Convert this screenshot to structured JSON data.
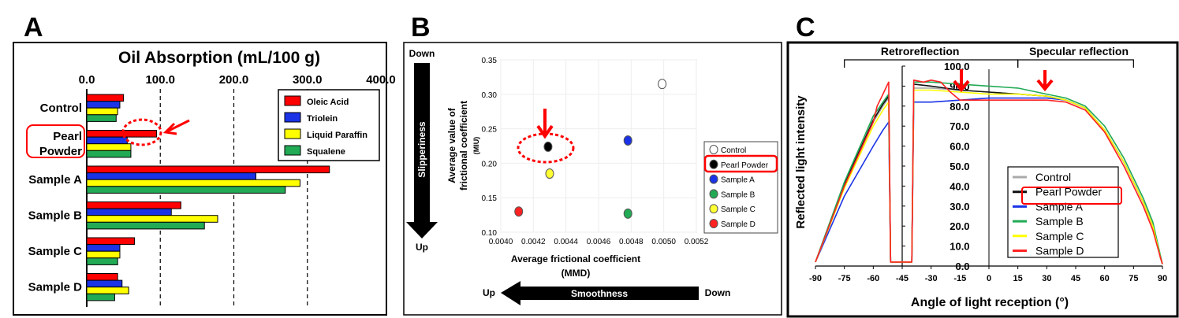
{
  "panel_letters": [
    "A",
    "B",
    "C"
  ],
  "chart_data": [
    {
      "type": "bar",
      "orientation": "horizontal",
      "title": "Oil Absorption (mL/100 g)",
      "categories": [
        "Control",
        "Pearl Powder",
        "Sample A",
        "Sample B",
        "Sample C",
        "Sample D"
      ],
      "category_display": [
        [
          "Control"
        ],
        [
          "Pearl",
          "Powder"
        ],
        [
          "Sample A"
        ],
        [
          "Sample B"
        ],
        [
          "Sample C"
        ],
        [
          "Sample D"
        ]
      ],
      "series": [
        {
          "name": "Oleic Acid",
          "color": "#ff0000",
          "values": [
            50,
            95,
            330,
            128,
            65,
            42
          ]
        },
        {
          "name": "Triolein",
          "color": "#1a33e6",
          "values": [
            45,
            55,
            230,
            115,
            45,
            48
          ]
        },
        {
          "name": "Liquid Paraffin",
          "color": "#ffff00",
          "values": [
            42,
            60,
            290,
            178,
            45,
            57
          ]
        },
        {
          "name": "Squalene",
          "color": "#22aa55",
          "values": [
            40,
            60,
            270,
            160,
            42,
            38
          ]
        }
      ],
      "xlim": [
        0,
        400
      ],
      "x_ticks": [
        "0.0",
        "100.0",
        "200.0",
        "300.0",
        "400.0"
      ],
      "grid": "dashed vertical lines at 100, 200, 300",
      "legend": "top-right",
      "highlight": "Pearl Powder"
    },
    {
      "type": "scatter",
      "xlabel": [
        "Average frictional coefficient",
        "(MMD)"
      ],
      "ylabel": [
        "Average value of",
        "frictional coefficient",
        "(MIU)"
      ],
      "xlim": [
        0.004,
        0.0052
      ],
      "ylim": [
        0.1,
        0.35
      ],
      "x_ticks": [
        "0.0040",
        "0.0042",
        "0.0044",
        "0.0046",
        "0.0048",
        "0.0050",
        "0.0052"
      ],
      "y_ticks": [
        "0.10",
        "0.15",
        "0.20",
        "0.25",
        "0.30",
        "0.35"
      ],
      "points": [
        {
          "name": "Control",
          "x": 0.00499,
          "y": 0.315,
          "color": "#ffffff"
        },
        {
          "name": "Pearl Powder",
          "x": 0.00429,
          "y": 0.224,
          "color": "#000000"
        },
        {
          "name": "Sample A",
          "x": 0.00478,
          "y": 0.233,
          "color": "#1a33e6"
        },
        {
          "name": "Sample B",
          "x": 0.00478,
          "y": 0.127,
          "color": "#22aa55"
        },
        {
          "name": "Sample C",
          "x": 0.0043,
          "y": 0.185,
          "color": "#ffff33"
        },
        {
          "name": "Sample D",
          "x": 0.00411,
          "y": 0.13,
          "color": "#ff2222"
        }
      ],
      "legend": "right",
      "highlight": "Pearl Powder",
      "arrow_vertical": {
        "label": "Slipperiness",
        "top": "Down",
        "bottom": "Up"
      },
      "arrow_horizontal": {
        "label": "Smoothness",
        "left": "Up",
        "right": "Down"
      }
    },
    {
      "type": "line",
      "xlabel": "Angle of light reception (°)",
      "ylabel": "Reflected light intensity",
      "xlim": [
        -90,
        90
      ],
      "ylim": [
        0,
        100
      ],
      "x_ticks": [
        "-90",
        "-75",
        "-60",
        "-45",
        "-30",
        "-15",
        "0",
        "15",
        "30",
        "45",
        "60",
        "75",
        "90"
      ],
      "y_ticks": [
        "0.0",
        "10.0",
        "20.0",
        "30.0",
        "40.0",
        "50.0",
        "60.0",
        "70.0",
        "80.0",
        "90.0",
        "100.0"
      ],
      "regions": [
        {
          "label": "Retroreflection",
          "from": -75,
          "to": 15
        },
        {
          "label": "Specular reflection",
          "from": 15,
          "to": 75
        }
      ],
      "series": [
        {
          "name": "Control",
          "color": "#aaaaaa",
          "points": [
            [
              -90,
              2
            ],
            [
              -75,
              40
            ],
            [
              -60,
              72
            ],
            [
              -55,
              80
            ],
            [
              -52,
              84
            ],
            [
              -51,
              2
            ],
            [
              -40,
              2
            ],
            [
              -39,
              89
            ],
            [
              -30,
              89
            ],
            [
              -15,
              88
            ],
            [
              0,
              87
            ],
            [
              15,
              86
            ],
            [
              30,
              85
            ],
            [
              40,
              83
            ],
            [
              50,
              79
            ],
            [
              60,
              68
            ],
            [
              70,
              52
            ],
            [
              80,
              32
            ],
            [
              85,
              20
            ],
            [
              89,
              4
            ],
            [
              90,
              1
            ]
          ]
        },
        {
          "name": "Pearl Powder",
          "color": "#111111",
          "points": [
            [
              -90,
              2
            ],
            [
              -75,
              41
            ],
            [
              -60,
              73
            ],
            [
              -55,
              81
            ],
            [
              -52,
              85
            ],
            [
              -51,
              2
            ],
            [
              -40,
              2
            ],
            [
              -39,
              91
            ],
            [
              -30,
              90
            ],
            [
              -15,
              88
            ],
            [
              0,
              87
            ],
            [
              15,
              86
            ],
            [
              30,
              85
            ],
            [
              40,
              83
            ],
            [
              50,
              79
            ],
            [
              60,
              68
            ],
            [
              70,
              52
            ],
            [
              80,
              32
            ],
            [
              85,
              20
            ],
            [
              89,
              4
            ],
            [
              90,
              1
            ]
          ]
        },
        {
          "name": "Sample A",
          "color": "#1a33e6",
          "points": [
            [
              -90,
              2
            ],
            [
              -75,
              35
            ],
            [
              -60,
              60
            ],
            [
              -55,
              68
            ],
            [
              -52,
              72
            ],
            [
              -51,
              2
            ],
            [
              -40,
              2
            ],
            [
              -39,
              82
            ],
            [
              -30,
              82
            ],
            [
              -15,
              83
            ],
            [
              0,
              84
            ],
            [
              15,
              84
            ],
            [
              30,
              84
            ],
            [
              40,
              83
            ],
            [
              50,
              79
            ],
            [
              60,
              68
            ],
            [
              70,
              52
            ],
            [
              80,
              32
            ],
            [
              85,
              20
            ],
            [
              89,
              4
            ],
            [
              90,
              1
            ]
          ]
        },
        {
          "name": "Sample B",
          "color": "#22aa55",
          "points": [
            [
              -90,
              2
            ],
            [
              -75,
              42
            ],
            [
              -60,
              75
            ],
            [
              -55,
              82
            ],
            [
              -52,
              86
            ],
            [
              -51,
              2
            ],
            [
              -40,
              2
            ],
            [
              -39,
              92
            ],
            [
              -30,
              92
            ],
            [
              -15,
              91
            ],
            [
              0,
              90
            ],
            [
              15,
              89
            ],
            [
              30,
              86
            ],
            [
              40,
              84
            ],
            [
              50,
              80
            ],
            [
              60,
              70
            ],
            [
              70,
              54
            ],
            [
              80,
              34
            ],
            [
              85,
              22
            ],
            [
              89,
              5
            ],
            [
              90,
              1
            ]
          ]
        },
        {
          "name": "Sample C",
          "color": "#ffff00",
          "points": [
            [
              -90,
              2
            ],
            [
              -75,
              39
            ],
            [
              -60,
              70
            ],
            [
              -55,
              78
            ],
            [
              -52,
              82
            ],
            [
              -51,
              2
            ],
            [
              -40,
              2
            ],
            [
              -39,
              88
            ],
            [
              -30,
              88
            ],
            [
              -15,
              87
            ],
            [
              0,
              86
            ],
            [
              15,
              86
            ],
            [
              30,
              85
            ],
            [
              40,
              83
            ],
            [
              50,
              79
            ],
            [
              60,
              68
            ],
            [
              70,
              52
            ],
            [
              80,
              32
            ],
            [
              85,
              20
            ],
            [
              89,
              4
            ],
            [
              90,
              1
            ]
          ]
        },
        {
          "name": "Sample D",
          "color": "#ff2222",
          "points": [
            [
              -90,
              2
            ],
            [
              -75,
              40
            ],
            [
              -60,
              72
            ],
            [
              -58,
              80
            ],
            [
              -55,
              86
            ],
            [
              -53,
              90
            ],
            [
              -52,
              92
            ],
            [
              -51,
              2
            ],
            [
              -40,
              2
            ],
            [
              -39,
              93
            ],
            [
              -34,
              92
            ],
            [
              -30,
              93
            ],
            [
              -25,
              92
            ],
            [
              -20,
              87
            ],
            [
              -15,
              83
            ],
            [
              0,
              83
            ],
            [
              15,
              83
            ],
            [
              30,
              83
            ],
            [
              40,
              82
            ],
            [
              50,
              78
            ],
            [
              60,
              67
            ],
            [
              70,
              50
            ],
            [
              80,
              30
            ],
            [
              85,
              18
            ],
            [
              89,
              4
            ],
            [
              90,
              1
            ]
          ]
        }
      ],
      "legend": "bottom-right",
      "highlight": "Pearl Powder"
    }
  ]
}
